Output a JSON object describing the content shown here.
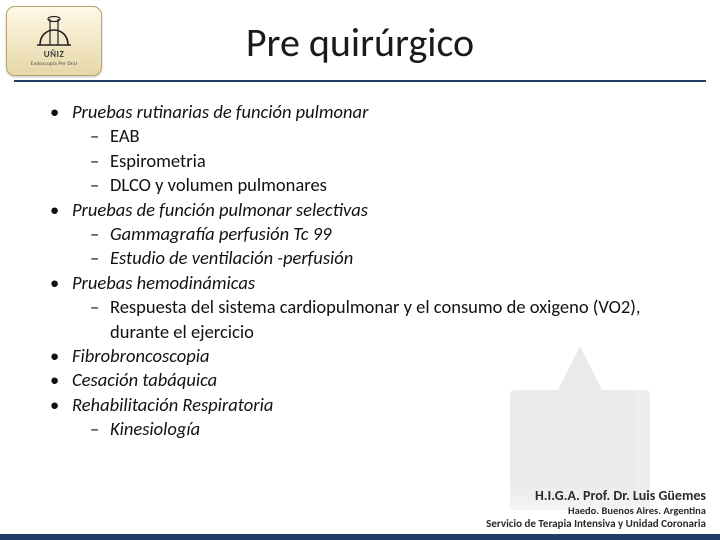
{
  "title": "Pre quirúrgico",
  "logo": {
    "text": "UÑIZ",
    "sub": "Endoscopia Per Oral"
  },
  "bullets": [
    {
      "text": "Pruebas rutinarias de función pulmonar",
      "children": [
        {
          "text": "EAB",
          "upright": true
        },
        {
          "text": "Espirometria",
          "upright": true
        },
        {
          "text": "DLCO y volumen pulmonares",
          "upright": true
        }
      ]
    },
    {
      "text": "Pruebas de función pulmonar selectivas",
      "children": [
        {
          "text": "Gammagrafía perfusión Tc 99"
        },
        {
          "text": "Estudio de ventilación -perfusión"
        }
      ]
    },
    {
      "text": "Pruebas hemodinámicas",
      "children": [
        {
          "text": "Respuesta del sistema cardiopulmonar y el consumo de oxigeno (VO2), durante el ejercicio",
          "upright": true
        }
      ]
    },
    {
      "text": "Fibrobroncoscopia"
    },
    {
      "text": "Cesación tabáquica"
    },
    {
      "text": "Rehabilitación Respiratoria",
      "children": [
        {
          "text": "Kinesiología"
        }
      ]
    }
  ],
  "footer": {
    "org": "H.I.G.A. Prof. Dr. Luis Güemes",
    "loc": "Haedo. Buenos Aires. Argentina",
    "svc": "Servicio de Terapia Intensiva y Unidad Coronaria"
  },
  "colors": {
    "rule": "#1f3d66",
    "footer_bar": "#1f3d66",
    "text": "#111111",
    "background": "#ffffff"
  }
}
